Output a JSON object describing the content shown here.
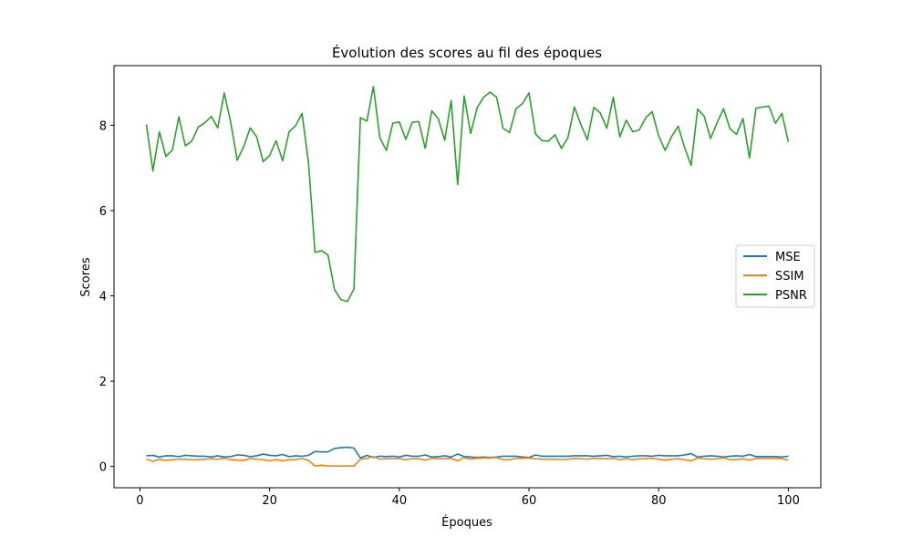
{
  "chart_data": {
    "type": "line",
    "title": "Évolution des scores au fil des époques",
    "xlabel": "Époques",
    "ylabel": "Scores",
    "xlim": [
      -4,
      105
    ],
    "ylim": [
      -0.5,
      9.4
    ],
    "xticks": [
      0,
      20,
      40,
      60,
      80,
      100
    ],
    "yticks": [
      0,
      2,
      4,
      6,
      8
    ],
    "grid": false,
    "legend_position": "center-right",
    "x": [
      1,
      2,
      3,
      4,
      5,
      6,
      7,
      8,
      9,
      10,
      11,
      12,
      13,
      14,
      15,
      16,
      17,
      18,
      19,
      20,
      21,
      22,
      23,
      24,
      25,
      26,
      27,
      28,
      29,
      30,
      31,
      32,
      33,
      34,
      35,
      36,
      37,
      38,
      39,
      40,
      41,
      42,
      43,
      44,
      45,
      46,
      47,
      48,
      49,
      50,
      51,
      52,
      53,
      54,
      55,
      56,
      57,
      58,
      59,
      60,
      61,
      62,
      63,
      64,
      65,
      66,
      67,
      68,
      69,
      70,
      71,
      72,
      73,
      74,
      75,
      76,
      77,
      78,
      79,
      80,
      81,
      82,
      83,
      84,
      85,
      86,
      87,
      88,
      89,
      90,
      91,
      92,
      93,
      94,
      95,
      96,
      97,
      98,
      99,
      100
    ],
    "series": [
      {
        "name": "MSE",
        "color": "#1f77b4",
        "values": [
          0.25,
          0.26,
          0.22,
          0.25,
          0.25,
          0.23,
          0.26,
          0.25,
          0.24,
          0.24,
          0.22,
          0.25,
          0.22,
          0.23,
          0.27,
          0.26,
          0.23,
          0.25,
          0.29,
          0.26,
          0.25,
          0.28,
          0.23,
          0.25,
          0.24,
          0.26,
          0.35,
          0.34,
          0.34,
          0.42,
          0.44,
          0.45,
          0.43,
          0.2,
          0.26,
          0.21,
          0.24,
          0.23,
          0.24,
          0.22,
          0.26,
          0.24,
          0.24,
          0.27,
          0.22,
          0.23,
          0.25,
          0.22,
          0.29,
          0.23,
          0.22,
          0.21,
          0.22,
          0.21,
          0.22,
          0.24,
          0.24,
          0.24,
          0.22,
          0.21,
          0.27,
          0.24,
          0.24,
          0.24,
          0.24,
          0.24,
          0.25,
          0.25,
          0.25,
          0.24,
          0.25,
          0.26,
          0.23,
          0.24,
          0.22,
          0.24,
          0.25,
          0.25,
          0.24,
          0.26,
          0.25,
          0.25,
          0.25,
          0.27,
          0.3,
          0.22,
          0.24,
          0.25,
          0.24,
          0.22,
          0.24,
          0.25,
          0.24,
          0.28,
          0.23,
          0.23,
          0.23,
          0.23,
          0.22,
          0.24
        ]
      },
      {
        "name": "SSIM",
        "color": "#ff7f0e",
        "values": [
          0.17,
          0.12,
          0.17,
          0.14,
          0.16,
          0.17,
          0.17,
          0.16,
          0.16,
          0.17,
          0.18,
          0.17,
          0.19,
          0.16,
          0.15,
          0.14,
          0.19,
          0.17,
          0.16,
          0.13,
          0.16,
          0.13,
          0.16,
          0.16,
          0.19,
          0.14,
          0.01,
          0.03,
          0.01,
          0.01,
          0.01,
          0.01,
          0.01,
          0.17,
          0.19,
          0.23,
          0.17,
          0.18,
          0.18,
          0.18,
          0.16,
          0.18,
          0.18,
          0.15,
          0.19,
          0.18,
          0.18,
          0.19,
          0.13,
          0.21,
          0.17,
          0.19,
          0.2,
          0.2,
          0.21,
          0.16,
          0.16,
          0.19,
          0.19,
          0.2,
          0.18,
          0.17,
          0.17,
          0.17,
          0.16,
          0.17,
          0.19,
          0.18,
          0.17,
          0.19,
          0.18,
          0.18,
          0.19,
          0.16,
          0.18,
          0.16,
          0.18,
          0.18,
          0.19,
          0.17,
          0.15,
          0.17,
          0.18,
          0.16,
          0.13,
          0.2,
          0.18,
          0.17,
          0.18,
          0.2,
          0.16,
          0.16,
          0.18,
          0.15,
          0.19,
          0.19,
          0.19,
          0.19,
          0.18,
          0.15
        ]
      },
      {
        "name": "PSNR",
        "color": "#2ca02c",
        "values": [
          8.02,
          6.93,
          7.85,
          7.27,
          7.42,
          8.2,
          7.52,
          7.63,
          7.96,
          8.06,
          8.21,
          7.94,
          8.76,
          8.07,
          7.18,
          7.5,
          7.94,
          7.73,
          7.15,
          7.29,
          7.64,
          7.17,
          7.85,
          7.99,
          8.28,
          7.12,
          5.02,
          5.06,
          4.96,
          4.15,
          3.91,
          3.87,
          4.16,
          8.18,
          8.1,
          8.91,
          7.71,
          7.41,
          8.05,
          8.08,
          7.67,
          8.07,
          8.09,
          7.46,
          8.34,
          8.16,
          7.65,
          8.58,
          6.61,
          8.69,
          7.81,
          8.41,
          8.66,
          8.78,
          8.66,
          7.93,
          7.83,
          8.39,
          8.51,
          8.76,
          7.8,
          7.64,
          7.63,
          7.78,
          7.46,
          7.71,
          8.43,
          8.02,
          7.66,
          8.42,
          8.29,
          7.93,
          8.66,
          7.73,
          8.12,
          7.85,
          7.89,
          8.18,
          8.32,
          7.75,
          7.41,
          7.74,
          7.98,
          7.48,
          7.06,
          8.38,
          8.22,
          7.69,
          8.06,
          8.39,
          7.92,
          7.79,
          8.16,
          7.23,
          8.4,
          8.43,
          8.45,
          8.05,
          8.28,
          7.61
        ]
      }
    ]
  }
}
